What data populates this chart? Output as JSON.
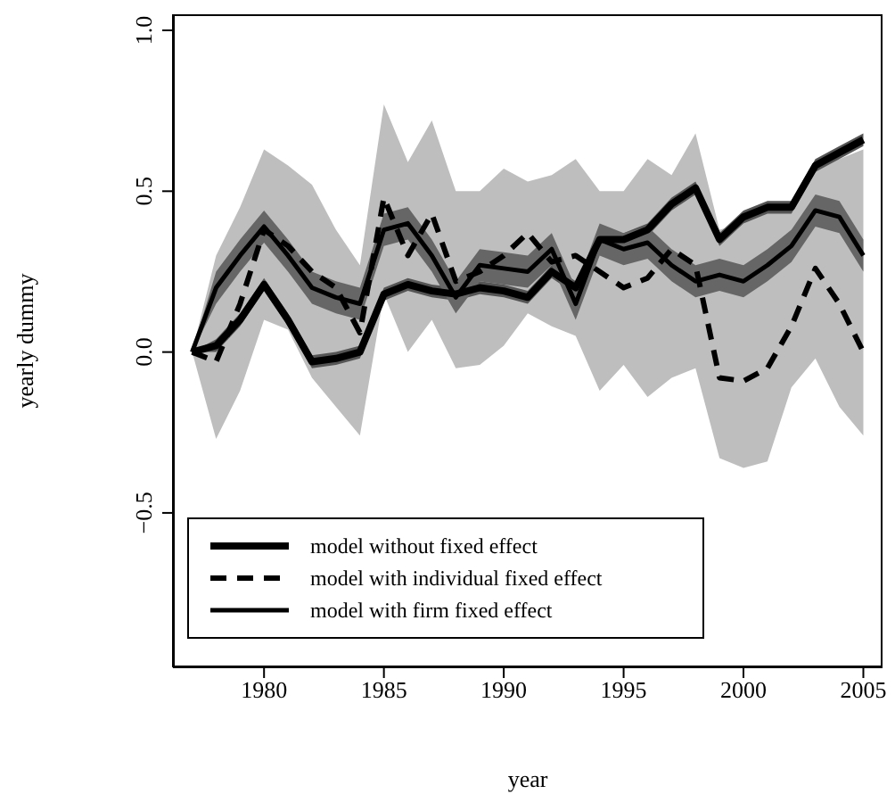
{
  "chart_data": {
    "type": "line",
    "xlabel": "year",
    "ylabel": "yearly dummy",
    "x": [
      1977,
      1978,
      1979,
      1980,
      1981,
      1982,
      1983,
      1984,
      1985,
      1986,
      1987,
      1988,
      1989,
      1990,
      1991,
      1992,
      1993,
      1994,
      1995,
      1996,
      1997,
      1998,
      1999,
      2000,
      2001,
      2002,
      2003,
      2004,
      2005
    ],
    "series": [
      {
        "name": "model without fixed effect",
        "color": "#000000",
        "line_style": "solid",
        "values": [
          0,
          0.02,
          0.1,
          0.21,
          0.1,
          -0.03,
          -0.02,
          0,
          0.18,
          0.21,
          0.19,
          0.18,
          0.2,
          0.19,
          0.17,
          0.25,
          0.2,
          0.35,
          0.35,
          0.38,
          0.46,
          0.51,
          0.35,
          0.42,
          0.45,
          0.45,
          0.58,
          0.62,
          0.66
        ],
        "lower": [
          0,
          0,
          0.08,
          0.19,
          0.08,
          -0.05,
          -0.04,
          -0.02,
          0.16,
          0.19,
          0.17,
          0.16,
          0.18,
          0.17,
          0.15,
          0.23,
          0.18,
          0.33,
          0.33,
          0.36,
          0.44,
          0.49,
          0.33,
          0.4,
          0.43,
          0.43,
          0.56,
          0.6,
          0.64
        ],
        "upper": [
          0,
          0.04,
          0.12,
          0.23,
          0.12,
          -0.01,
          0,
          0.02,
          0.2,
          0.23,
          0.21,
          0.2,
          0.22,
          0.21,
          0.19,
          0.27,
          0.22,
          0.37,
          0.37,
          0.4,
          0.48,
          0.53,
          0.37,
          0.44,
          0.47,
          0.47,
          0.6,
          0.64,
          0.68
        ]
      },
      {
        "name": "model with individual fixed effect",
        "color": "#000000",
        "line_style": "dashed",
        "values": [
          0,
          -0.03,
          0.15,
          0.38,
          0.33,
          0.25,
          0.2,
          0.06,
          0.48,
          0.3,
          0.43,
          0.22,
          0.25,
          0.3,
          0.37,
          0.28,
          0.3,
          0.25,
          0.2,
          0.23,
          0.32,
          0.27,
          -0.08,
          -0.09,
          -0.05,
          0.08,
          0.26,
          0.15,
          0
        ],
        "lower": [
          0,
          -0.27,
          -0.12,
          0.1,
          0.07,
          -0.08,
          -0.17,
          -0.26,
          0.18,
          0,
          0.1,
          -0.05,
          -0.04,
          0.02,
          0.12,
          0.08,
          0.05,
          -0.12,
          -0.04,
          -0.14,
          -0.08,
          -0.05,
          -0.33,
          -0.36,
          -0.34,
          -0.11,
          -0.02,
          -0.17,
          -0.26
        ],
        "upper": [
          0,
          0.3,
          0.45,
          0.63,
          0.58,
          0.52,
          0.38,
          0.27,
          0.77,
          0.59,
          0.72,
          0.5,
          0.5,
          0.57,
          0.53,
          0.55,
          0.6,
          0.5,
          0.5,
          0.6,
          0.55,
          0.68,
          0.38,
          0.4,
          0.45,
          0.45,
          0.6,
          0.6,
          0.63
        ]
      },
      {
        "name": "model with firm fixed effect",
        "color": "#000000",
        "line_style": "solid",
        "values": [
          0,
          0.2,
          0.3,
          0.39,
          0.3,
          0.2,
          0.17,
          0.15,
          0.38,
          0.4,
          0.3,
          0.17,
          0.27,
          0.26,
          0.25,
          0.32,
          0.15,
          0.35,
          0.32,
          0.34,
          0.27,
          0.22,
          0.24,
          0.22,
          0.27,
          0.33,
          0.44,
          0.42,
          0.3
        ],
        "lower": [
          0,
          0.15,
          0.25,
          0.34,
          0.25,
          0.15,
          0.12,
          0.1,
          0.33,
          0.35,
          0.25,
          0.12,
          0.22,
          0.21,
          0.2,
          0.27,
          0.1,
          0.3,
          0.27,
          0.29,
          0.22,
          0.17,
          0.19,
          0.17,
          0.22,
          0.28,
          0.39,
          0.37,
          0.25
        ],
        "upper": [
          0,
          0.25,
          0.35,
          0.44,
          0.35,
          0.25,
          0.22,
          0.2,
          0.43,
          0.45,
          0.35,
          0.22,
          0.32,
          0.31,
          0.3,
          0.37,
          0.2,
          0.4,
          0.37,
          0.39,
          0.32,
          0.27,
          0.29,
          0.27,
          0.32,
          0.38,
          0.49,
          0.47,
          0.35
        ]
      }
    ],
    "xlim": [
      1976.2,
      2005.8
    ],
    "xticks": [
      1980,
      1985,
      1990,
      1995,
      2000,
      2005
    ],
    "ylim": [
      -0.98,
      1.05
    ],
    "yticks": [
      {
        "value": -0.5,
        "label": "−0.5"
      },
      {
        "value": 0,
        "label": "0.0"
      },
      0.5,
      {
        "value": 1,
        "label": "1.0"
      }
    ],
    "grid": false,
    "legend": "bottom left",
    "marker": "none"
  }
}
